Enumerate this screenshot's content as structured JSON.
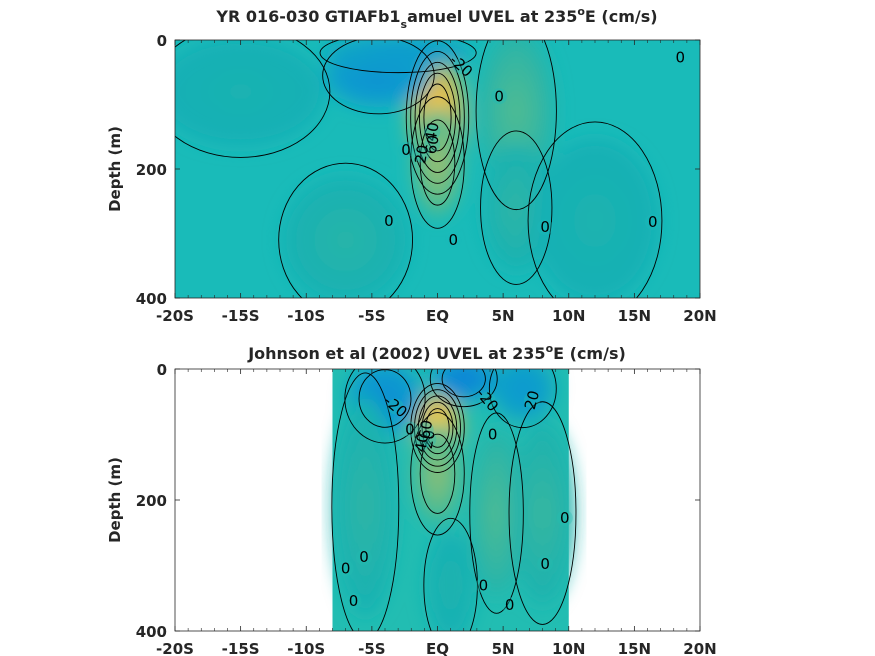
{
  "chart_data": [
    {
      "type": "heatmap",
      "title": "YR 016-030 GTIAFb1",
      "title_sub": "s",
      "title_rest": "amuel UVEL at 235",
      "title_sup": "o",
      "title_end": "E (cm/s)",
      "ylabel": "Depth (m)",
      "xlabel": "",
      "xlim": [
        -20,
        20
      ],
      "ylim": [
        0,
        400
      ],
      "y_reversed": true,
      "x_ticks": [
        -20,
        -15,
        -10,
        -5,
        0,
        5,
        10,
        15,
        20
      ],
      "x_tick_labels": [
        "-20S",
        "-15S",
        "-10S",
        "-5S",
        "EQ",
        "5N",
        "10N",
        "15N",
        "20N"
      ],
      "y_ticks": [
        0,
        200,
        400
      ],
      "y_tick_labels": [
        "0",
        "200",
        "400"
      ],
      "data_extent": [
        -20,
        20
      ],
      "background": "#19bbb9",
      "features": [
        {
          "lon": 0,
          "depth": 120,
          "dlon": 1.4,
          "ddepth": 70,
          "value": 90
        },
        {
          "lon": 0,
          "depth": 190,
          "dlon": 1.2,
          "ddepth": 60,
          "value": 45
        },
        {
          "lon": -4.5,
          "depth": 55,
          "dlon": 2.5,
          "ddepth": 35,
          "value": -28
        },
        {
          "lon": -3,
          "depth": 20,
          "dlon": 3.5,
          "ddepth": 18,
          "value": -20
        },
        {
          "lon": 6,
          "depth": 110,
          "dlon": 1.8,
          "ddepth": 90,
          "value": 22
        },
        {
          "lon": 6,
          "depth": 260,
          "dlon": 1.6,
          "ddepth": 70,
          "value": 12
        },
        {
          "lon": -7,
          "depth": 310,
          "dlon": 3,
          "ddepth": 70,
          "value": 10
        },
        {
          "lon": 12,
          "depth": 280,
          "dlon": 3,
          "ddepth": 90,
          "value": 7
        },
        {
          "lon": -15,
          "depth": 80,
          "dlon": 4,
          "ddepth": 60,
          "value": 6
        }
      ],
      "contour_labels": [
        {
          "text": "-20",
          "lon": 1.8,
          "depth": 48,
          "rot": 42
        },
        {
          "text": "0",
          "lon": 4.7,
          "depth": 95,
          "rot": 0
        },
        {
          "text": "0",
          "lon": 18.5,
          "depth": 35,
          "rot": 0
        },
        {
          "text": "40",
          "lon": -0.4,
          "depth": 150,
          "rot": -80
        },
        {
          "text": "60",
          "lon": -0.4,
          "depth": 170,
          "rot": -80
        },
        {
          "text": "0",
          "lon": -2.4,
          "depth": 178,
          "rot": 0
        },
        {
          "text": "20",
          "lon": -1.2,
          "depth": 185,
          "rot": -80
        },
        {
          "text": "0",
          "lon": -3.7,
          "depth": 288,
          "rot": 0
        },
        {
          "text": "0",
          "lon": 1.2,
          "depth": 318,
          "rot": 0
        },
        {
          "text": "0",
          "lon": 8.2,
          "depth": 298,
          "rot": 0
        },
        {
          "text": "0",
          "lon": 16.4,
          "depth": 290,
          "rot": 0
        }
      ]
    },
    {
      "type": "heatmap",
      "title": "Johnson et al (2002) UVEL at 235",
      "title_sub": "",
      "title_rest": "",
      "title_sup": "o",
      "title_end": "E (cm/s)",
      "ylabel": "Depth (m)",
      "xlabel": "",
      "xlim": [
        -20,
        20
      ],
      "ylim": [
        0,
        400
      ],
      "y_reversed": true,
      "x_ticks": [
        -20,
        -15,
        -10,
        -5,
        0,
        5,
        10,
        15,
        20
      ],
      "x_tick_labels": [
        "-20S",
        "-15S",
        "-10S",
        "-5S",
        "EQ",
        "5N",
        "10N",
        "15N",
        "20N"
      ],
      "y_ticks": [
        0,
        200,
        400
      ],
      "y_tick_labels": [
        "0",
        "200",
        "400"
      ],
      "data_extent": [
        -8,
        10
      ],
      "background": "#22bdb2",
      "features": [
        {
          "lon": 0,
          "depth": 90,
          "dlon": 1.2,
          "ddepth": 40,
          "value": 100
        },
        {
          "lon": 0,
          "depth": 160,
          "dlon": 1.2,
          "ddepth": 55,
          "value": 40
        },
        {
          "lon": 2,
          "depth": 15,
          "dlon": 1.5,
          "ddepth": 25,
          "value": -45
        },
        {
          "lon": -4,
          "depth": 45,
          "dlon": 1.8,
          "ddepth": 40,
          "value": -30
        },
        {
          "lon": 6.5,
          "depth": 30,
          "dlon": 1.5,
          "ddepth": 35,
          "value": -20
        },
        {
          "lon": 4.5,
          "depth": 220,
          "dlon": 1.2,
          "ddepth": 90,
          "value": 22
        },
        {
          "lon": -5.5,
          "depth": 210,
          "dlon": 1.5,
          "ddepth": 120,
          "value": 12
        },
        {
          "lon": 8,
          "depth": 220,
          "dlon": 1.5,
          "ddepth": 100,
          "value": 15
        },
        {
          "lon": 1,
          "depth": 330,
          "dlon": 1.2,
          "ddepth": 60,
          "value": 8
        }
      ],
      "contour_labels": [
        {
          "text": "-20",
          "lon": -3.2,
          "depth": 65,
          "rot": 40
        },
        {
          "text": "-20",
          "lon": 3.8,
          "depth": 55,
          "rot": 50
        },
        {
          "text": "20",
          "lon": 7.2,
          "depth": 55,
          "rot": -75
        },
        {
          "text": "0",
          "lon": 4.2,
          "depth": 108,
          "rot": 0
        },
        {
          "text": "0",
          "lon": -2.1,
          "depth": 100,
          "rot": 0
        },
        {
          "text": "20",
          "lon": -0.7,
          "depth": 115,
          "rot": -80
        },
        {
          "text": "40",
          "lon": -1.2,
          "depth": 120,
          "rot": -80
        },
        {
          "text": "60",
          "lon": -0.9,
          "depth": 100,
          "rot": -80
        },
        {
          "text": "0",
          "lon": 9.7,
          "depth": 235,
          "rot": 0
        },
        {
          "text": "0",
          "lon": -7,
          "depth": 312,
          "rot": 0
        },
        {
          "text": "0",
          "lon": -5.6,
          "depth": 295,
          "rot": 0
        },
        {
          "text": "0",
          "lon": 8.2,
          "depth": 305,
          "rot": 0
        },
        {
          "text": "0",
          "lon": -6.4,
          "depth": 362,
          "rot": 0
        },
        {
          "text": "0",
          "lon": 3.5,
          "depth": 338,
          "rot": 0
        },
        {
          "text": "0",
          "lon": 5.5,
          "depth": 368,
          "rot": 0
        }
      ]
    }
  ]
}
